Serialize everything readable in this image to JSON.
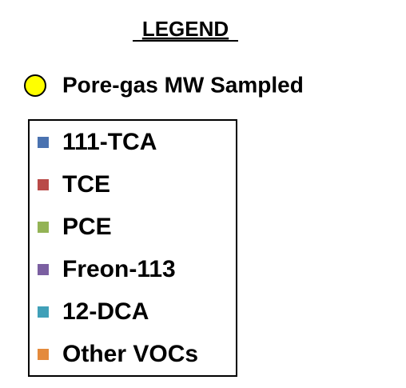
{
  "title": "LEGEND",
  "marker": {
    "label": "Pore-gas MW Sampled",
    "color": "#ffff00"
  },
  "items": [
    {
      "label": "111-TCA",
      "color": "#4a72b0"
    },
    {
      "label": "TCE",
      "color": "#b94a48"
    },
    {
      "label": "PCE",
      "color": "#93b355"
    },
    {
      "label": "Freon-113",
      "color": "#7b5fa1"
    },
    {
      "label": "12-DCA",
      "color": "#40a0b8"
    },
    {
      "label": "Other VOCs",
      "color": "#e48a3c"
    }
  ]
}
